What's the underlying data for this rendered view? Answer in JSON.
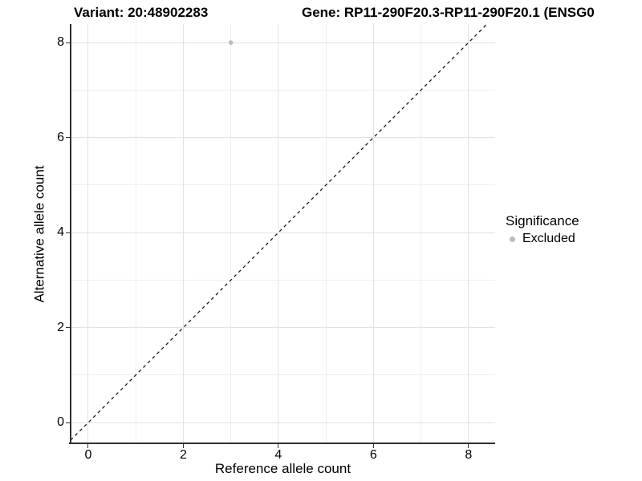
{
  "titles": {
    "left": "Variant: 20:48902283",
    "right": "Gene: RP11-290F20.3-RP11-290F20.1 (ENSG0"
  },
  "axes": {
    "x_label": "Reference allele count",
    "y_label": "Alternative allele count",
    "x_tick_labels": [
      "0",
      "2",
      "4",
      "6",
      "8"
    ],
    "y_tick_labels": [
      "0",
      "2",
      "4",
      "6",
      "8"
    ]
  },
  "legend": {
    "title": "Significance",
    "items": [
      {
        "label": "Excluded",
        "color": "#bdbdbd"
      }
    ]
  },
  "colors": {
    "point": "#bdbdbd",
    "grid_major": "#e3e3e3",
    "grid_minor": "#efefef",
    "axis_line": "#2f2f2f",
    "dashed_line": "#1a1a1a"
  },
  "chart_data": {
    "type": "scatter",
    "title": "Variant: 20:48902283   Gene: RP11-290F20.3-RP11-290F20.1 (ENSG0",
    "xlabel": "Reference allele count",
    "ylabel": "Alternative allele count",
    "xlim": [
      -0.37,
      8.56
    ],
    "ylim": [
      -0.42,
      8.39
    ],
    "x_major_breaks": [
      0,
      2,
      4,
      6,
      8
    ],
    "x_minor_breaks": [
      1,
      3,
      5,
      7
    ],
    "y_major_breaks": [
      0,
      2,
      4,
      6,
      8
    ],
    "y_minor_breaks": [
      1,
      3,
      5,
      7
    ],
    "grid": true,
    "legend_position": "right",
    "series": [
      {
        "name": "Excluded",
        "color": "#bdbdbd",
        "points": [
          [
            3,
            8
          ]
        ]
      }
    ],
    "reference_line": {
      "type": "identity",
      "style": "dashed",
      "color": "#1a1a1a"
    }
  }
}
